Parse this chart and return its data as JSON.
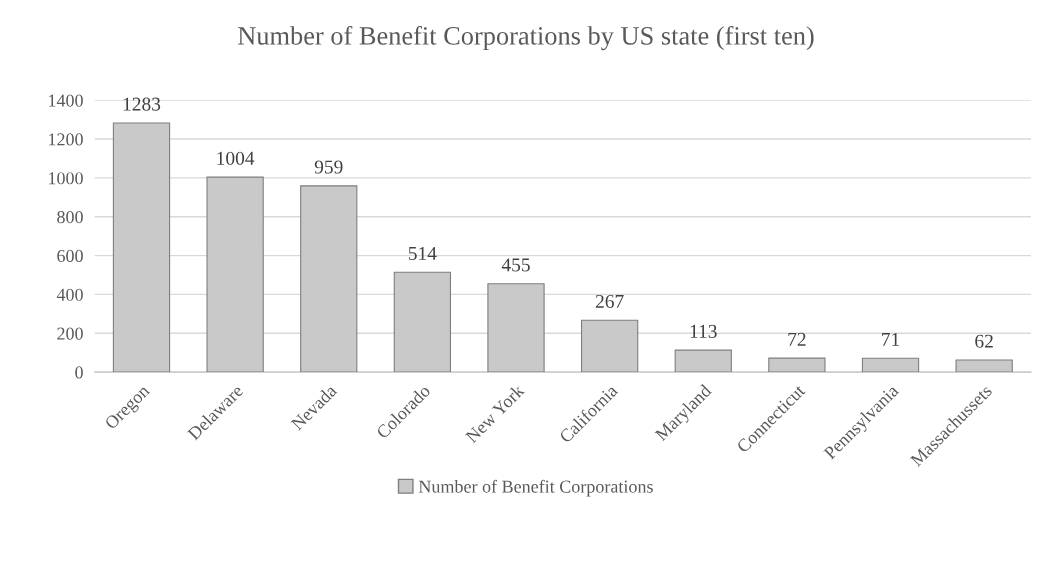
{
  "chart_data": {
    "type": "bar",
    "title": "Number of Benefit Corporations by US state (first ten)",
    "categories": [
      "Oregon",
      "Delaware",
      "Nevada",
      "Colorado",
      "New York",
      "California",
      "Maryland",
      "Connecticut",
      "Pennsylvania",
      "Massachussets"
    ],
    "series": [
      {
        "name": "Number of Benefit Corporations",
        "color": "#c9c9c9",
        "values": [
          1283,
          1004,
          959,
          514,
          455,
          267,
          113,
          72,
          71,
          62
        ]
      }
    ],
    "ylim": [
      0,
      1400
    ],
    "yticks": [
      0,
      200,
      400,
      600,
      800,
      1000,
      1200,
      1400
    ],
    "grid": "y",
    "legend": "bottom",
    "data_labels": true
  }
}
